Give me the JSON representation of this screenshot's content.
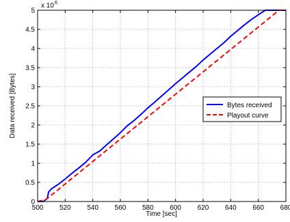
{
  "chart_data": {
    "type": "line",
    "title": "",
    "xlabel": "Time [sec]",
    "ylabel": "Data received [Bytes]",
    "xlim": [
      500,
      680
    ],
    "ylim": [
      0,
      5000000
    ],
    "y_scale_label": "x 10",
    "y_scale_exponent": "6",
    "xticks": [
      500,
      520,
      540,
      560,
      580,
      600,
      620,
      640,
      660,
      680
    ],
    "yticks": [
      0,
      0.5,
      1,
      1.5,
      2,
      2.5,
      3,
      3.5,
      4,
      4.5,
      5
    ],
    "ytick_labels": [
      "0",
      "0.5",
      "1",
      "1.5",
      "2",
      "2.5",
      "3",
      "3.5",
      "4",
      "4.5",
      "5"
    ],
    "grid": true,
    "legend_position": "right",
    "series": [
      {
        "name": "Bytes received",
        "color": "#0000ff",
        "style": "solid",
        "x": [
          500,
          504,
          507,
          508,
          510,
          515,
          520,
          525,
          530,
          535,
          540,
          545,
          550,
          555,
          560,
          565,
          570,
          575,
          580,
          585,
          590,
          595,
          600,
          605,
          610,
          615,
          620,
          625,
          630,
          635,
          640,
          645,
          650,
          655,
          660,
          665,
          668,
          670,
          680
        ],
        "y": [
          0,
          0,
          80000,
          250000,
          330000,
          450000,
          590000,
          740000,
          880000,
          1030000,
          1220000,
          1320000,
          1480000,
          1640000,
          1800000,
          1980000,
          2120000,
          2280000,
          2450000,
          2600000,
          2760000,
          2920000,
          3080000,
          3230000,
          3380000,
          3530000,
          3700000,
          3850000,
          4000000,
          4150000,
          4320000,
          4470000,
          4620000,
          4760000,
          4880000,
          5000000,
          5000000,
          5000000,
          5000000
        ]
      },
      {
        "name": "Playout curve",
        "color": "#ff0000",
        "style": "dashed",
        "x": [
          500,
          506,
          675,
          680
        ],
        "y": [
          0,
          50000,
          5000000,
          5000000
        ]
      }
    ]
  }
}
